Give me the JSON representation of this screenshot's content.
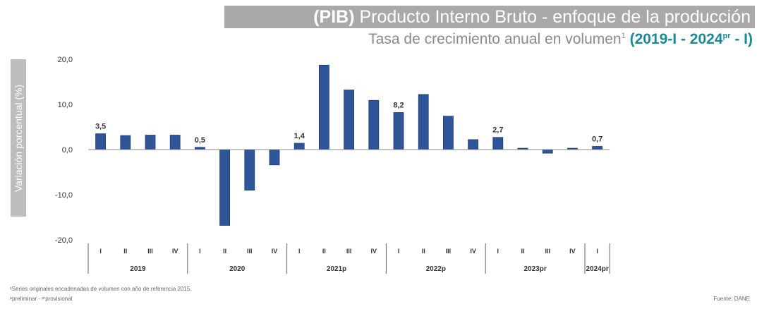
{
  "header": {
    "title_strong": "(PIB)",
    "title_rest": " Producto Interno Bruto  - enfoque de la producción",
    "subtitle_text": "Tasa de crecimiento anual en volumen",
    "subtitle_sup": "1",
    "subtitle_period_start": "(2019-I - 2024",
    "subtitle_period_sup": "pr",
    "subtitle_period_end": " - I)"
  },
  "footer": {
    "note1": "¹Series originales encadenadas de volumen con año de referencia 2015.",
    "note2": "ᵖpreliminar - ᵖʳprovisional",
    "source": "Fuente: DANE"
  },
  "colors": {
    "bar": "#2e5597",
    "bar_dark": "#1f3d73",
    "axis": "#666666"
  },
  "chart_data": {
    "type": "bar",
    "title": "(PIB) Producto Interno Bruto  - enfoque de la producción",
    "subtitle": "Tasa de crecimiento anual en volumen (2019-I - 2024pr - I)",
    "ylabel": "Variación porcentual (%)",
    "ylim": [
      -20,
      20
    ],
    "yticks": [
      20,
      10,
      0,
      -10,
      -20
    ],
    "ytick_labels": [
      "20,0",
      "10,0",
      "0,0",
      "-10,0",
      "-20,0"
    ],
    "quarters": [
      "I",
      "II",
      "III",
      "IV",
      "I",
      "II",
      "III",
      "IV",
      "I",
      "II",
      "III",
      "IV",
      "I",
      "II",
      "III",
      "IV",
      "I",
      "II",
      "III",
      "IV",
      "I"
    ],
    "groups": [
      {
        "label": "2019",
        "count": 4
      },
      {
        "label": "2020",
        "count": 4
      },
      {
        "label": "2021p",
        "count": 4
      },
      {
        "label": "2022p",
        "count": 4
      },
      {
        "label": "2023pr",
        "count": 4
      },
      {
        "label": "2024pr",
        "count": 1
      }
    ],
    "values": [
      3.5,
      3.1,
      3.2,
      3.2,
      0.5,
      -16.8,
      -9.0,
      -3.4,
      1.4,
      18.7,
      13.2,
      10.9,
      8.2,
      12.2,
      7.4,
      2.2,
      2.7,
      0.3,
      -0.8,
      0.3,
      0.7
    ],
    "data_labels": [
      {
        "index": 0,
        "text": "3,5"
      },
      {
        "index": 4,
        "text": "0,5"
      },
      {
        "index": 8,
        "text": "1,4"
      },
      {
        "index": 12,
        "text": "8,2"
      },
      {
        "index": 16,
        "text": "2,7"
      },
      {
        "index": 20,
        "text": "0,7"
      }
    ],
    "grid": false
  }
}
